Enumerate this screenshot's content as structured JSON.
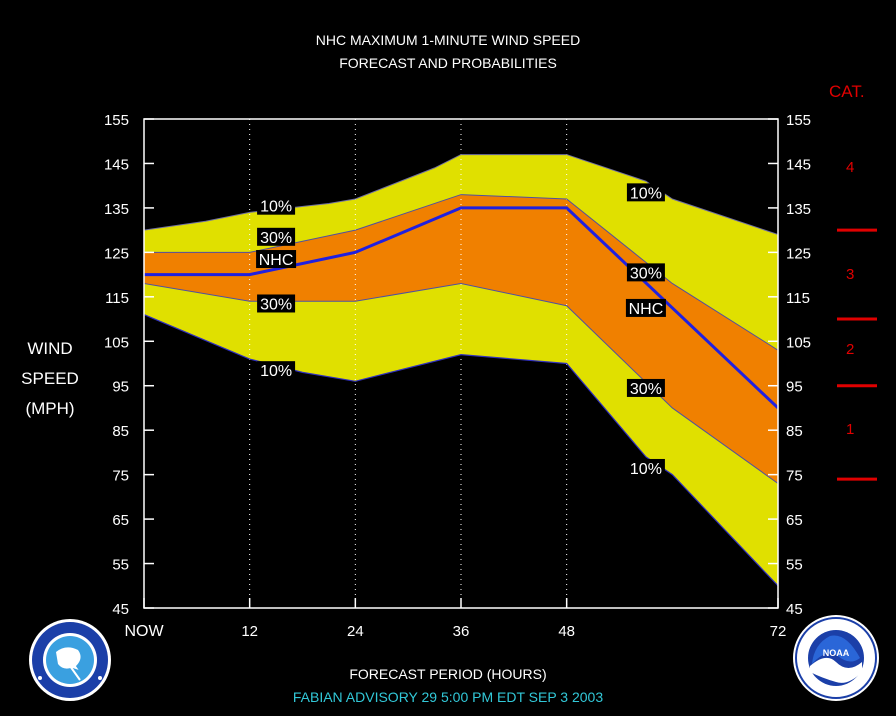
{
  "chart_data": {
    "type": "area",
    "title": "NHC MAXIMUM 1-MINUTE WIND SPEED",
    "subtitle": "FORECAST AND PROBABILITIES",
    "xlabel": "FORECAST PERIOD (HOURS)",
    "ylabel_lines": [
      "WIND",
      "SPEED",
      "(MPH)"
    ],
    "x": [
      0,
      12,
      24,
      36,
      48,
      72
    ],
    "x_tick_labels": [
      "NOW",
      "12",
      "24",
      "36",
      "48",
      "72"
    ],
    "ylim": [
      45,
      155
    ],
    "y_ticks": [
      45,
      55,
      65,
      75,
      85,
      95,
      105,
      115,
      125,
      135,
      145,
      155
    ],
    "series": [
      {
        "name": "10%",
        "band": "upper",
        "x": [
          0,
          7,
          12,
          21,
          24,
          33,
          36,
          48,
          57,
          60,
          72
        ],
        "values": [
          130,
          132,
          134,
          136,
          137,
          144,
          147,
          147,
          141,
          137,
          129
        ]
      },
      {
        "name": "30%",
        "band": "upper",
        "x": [
          0,
          12,
          24,
          36,
          48,
          60,
          72
        ],
        "values": [
          125,
          125,
          130,
          138,
          137,
          118,
          103
        ]
      },
      {
        "name": "NHC",
        "x": [
          0,
          12,
          24,
          36,
          48,
          72
        ],
        "values": [
          120,
          120,
          125,
          135,
          135,
          90
        ]
      },
      {
        "name": "30%",
        "band": "lower",
        "x": [
          0,
          12,
          24,
          36,
          48,
          60,
          72
        ],
        "values": [
          118,
          114,
          114,
          118,
          113,
          90,
          73
        ]
      },
      {
        "name": "10%",
        "band": "lower",
        "x": [
          0,
          12,
          18,
          21,
          24,
          36,
          48,
          57,
          60,
          72
        ],
        "values": [
          111,
          101,
          98,
          97,
          96,
          102,
          100,
          79,
          75,
          50
        ]
      }
    ],
    "band_labels": [
      {
        "text": "10%",
        "x": 15,
        "y": 135.5
      },
      {
        "text": "30%",
        "x": 15,
        "y": 128.5
      },
      {
        "text": "NHC",
        "x": 15,
        "y": 123.5
      },
      {
        "text": "30%",
        "x": 15,
        "y": 113.5
      },
      {
        "text": "10%",
        "x": 15,
        "y": 98.5
      },
      {
        "text": "10%",
        "x": 57,
        "y": 138.5
      },
      {
        "text": "30%",
        "x": 57,
        "y": 120.5
      },
      {
        "text": "NHC",
        "x": 57,
        "y": 112.5
      },
      {
        "text": "30%",
        "x": 57,
        "y": 94.5
      },
      {
        "text": "10%",
        "x": 57,
        "y": 76.5
      }
    ],
    "categories_scale": {
      "title": "CAT.",
      "labels": [
        {
          "text": "4",
          "y": 144
        },
        {
          "text": "3",
          "y": 120
        },
        {
          "text": "2",
          "y": 103
        },
        {
          "text": "1",
          "y": 85
        }
      ],
      "boundaries": [
        130,
        110,
        95,
        74
      ]
    },
    "grid": "dotted vertical at 12, 24, 36, 48",
    "colors": {
      "outer_band": "#e0e000",
      "inner_band": "#f08000",
      "nhc_line": "#2020e0",
      "background": "#000000",
      "category": "#e00000"
    }
  },
  "footer": {
    "advisory": "FABIAN   ADVISORY  29 5:00  PM  EDT  SEP  3  2003"
  },
  "logos": {
    "left": "nws-logo",
    "right": "noaa-logo"
  }
}
